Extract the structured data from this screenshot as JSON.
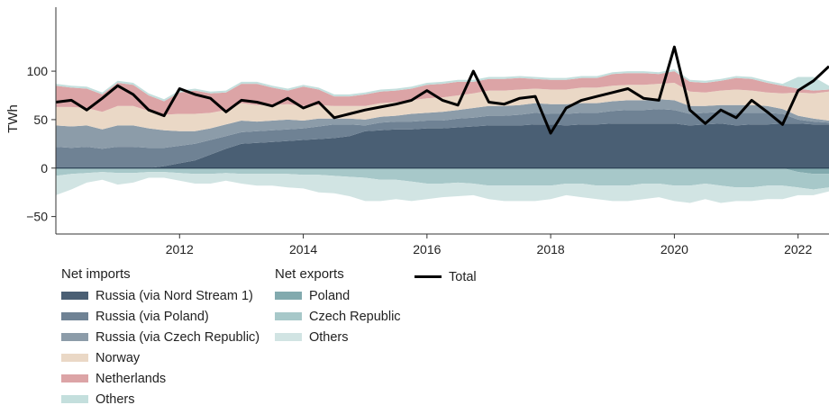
{
  "chart_data": {
    "type": "area",
    "ylabel": "TWh",
    "xlim": [
      2010.0,
      2022.5
    ],
    "ylim": [
      -68,
      166
    ],
    "x_ticks": [
      "2012",
      "2014",
      "2016",
      "2018",
      "2020",
      "2022"
    ],
    "y_ticks": [
      "100",
      "50",
      "0",
      "−50"
    ],
    "x": [
      2010.0,
      2010.25,
      2010.5,
      2010.75,
      2011.0,
      2011.25,
      2011.5,
      2011.75,
      2012.0,
      2012.25,
      2012.5,
      2012.75,
      2013.0,
      2013.25,
      2013.5,
      2013.75,
      2014.0,
      2014.25,
      2014.5,
      2014.75,
      2015.0,
      2015.25,
      2015.5,
      2015.75,
      2016.0,
      2016.25,
      2016.5,
      2016.75,
      2017.0,
      2017.25,
      2017.5,
      2017.75,
      2018.0,
      2018.25,
      2018.5,
      2018.75,
      2019.0,
      2019.25,
      2019.5,
      2019.75,
      2020.0,
      2020.25,
      2020.5,
      2020.75,
      2021.0,
      2021.25,
      2021.5,
      2021.75,
      2022.0,
      2022.25,
      2022.5
    ],
    "legend": {
      "imports_title": "Net imports",
      "exports_title": "Net exports",
      "total_label": "Total"
    },
    "import_series": [
      {
        "name": "Russia (via Nord Stream 1)",
        "color": "#4a5f74",
        "values": [
          0,
          0,
          0,
          0,
          0,
          0,
          0,
          2,
          5,
          8,
          14,
          20,
          25,
          26,
          27,
          28,
          29,
          30,
          31,
          33,
          38,
          39,
          40,
          40,
          41,
          41,
          42,
          43,
          44,
          44,
          44,
          45,
          45,
          44,
          45,
          45,
          46,
          46,
          46,
          46,
          46,
          44,
          45,
          46,
          44,
          45,
          45,
          46,
          46,
          45,
          45
        ]
      },
      {
        "name": "Russia (via Poland)",
        "color": "#6f8294",
        "values": [
          22,
          21,
          22,
          20,
          22,
          22,
          21,
          19,
          18,
          17,
          15,
          13,
          12,
          12,
          12,
          12,
          12,
          13,
          14,
          12,
          6,
          8,
          8,
          8,
          8,
          8,
          9,
          9,
          10,
          10,
          11,
          12,
          11,
          12,
          12,
          12,
          13,
          14,
          14,
          15,
          14,
          12,
          12,
          12,
          13,
          12,
          12,
          10,
          4,
          3,
          2
        ]
      },
      {
        "name": "Russia (via Czech Republic)",
        "color": "#8c9ca9",
        "values": [
          22,
          22,
          22,
          20,
          22,
          22,
          20,
          18,
          15,
          13,
          12,
          12,
          12,
          10,
          10,
          10,
          8,
          8,
          6,
          6,
          6,
          6,
          6,
          8,
          8,
          9,
          9,
          10,
          10,
          10,
          10,
          10,
          10,
          10,
          10,
          10,
          10,
          10,
          10,
          10,
          10,
          8,
          7,
          7,
          8,
          8,
          7,
          5,
          4,
          3,
          2
        ]
      },
      {
        "name": "Norway",
        "color": "#ead8c6",
        "values": [
          19,
          20,
          18,
          18,
          20,
          20,
          18,
          16,
          18,
          18,
          16,
          15,
          18,
          17,
          16,
          16,
          15,
          14,
          13,
          13,
          14,
          14,
          14,
          14,
          15,
          15,
          15,
          15,
          16,
          16,
          16,
          15,
          15,
          15,
          16,
          16,
          16,
          16,
          16,
          16,
          18,
          15,
          14,
          15,
          16,
          15,
          14,
          16,
          24,
          26,
          30
        ]
      },
      {
        "name": "Netherlands",
        "color": "#dca4a6",
        "values": [
          22,
          20,
          20,
          18,
          24,
          22,
          16,
          14,
          22,
          24,
          20,
          18,
          20,
          22,
          18,
          14,
          20,
          16,
          10,
          10,
          12,
          12,
          12,
          12,
          14,
          14,
          14,
          12,
          12,
          12,
          12,
          10,
          10,
          10,
          10,
          10,
          12,
          12,
          12,
          10,
          12,
          10,
          10,
          10,
          12,
          12,
          10,
          8,
          4,
          3,
          2
        ]
      },
      {
        "name": "Others",
        "color": "#c4dfdd",
        "values": [
          2,
          2,
          2,
          2,
          2,
          2,
          2,
          2,
          2,
          2,
          2,
          2,
          2,
          2,
          2,
          2,
          2,
          2,
          2,
          2,
          2,
          2,
          2,
          2,
          2,
          2,
          2,
          2,
          2,
          2,
          2,
          2,
          2,
          2,
          2,
          2,
          2,
          2,
          2,
          2,
          2,
          2,
          2,
          2,
          2,
          2,
          2,
          2,
          12,
          14,
          4
        ]
      }
    ],
    "export_series": [
      {
        "name": "Poland",
        "color": "#82aaae",
        "values": [
          0,
          0,
          0,
          0,
          0,
          0,
          0,
          0,
          0,
          0,
          0,
          0,
          0,
          0,
          0,
          0,
          0,
          0,
          0,
          0,
          0,
          0,
          0,
          0,
          0,
          0,
          0,
          0,
          0,
          0,
          0,
          0,
          0,
          0,
          0,
          0,
          0,
          0,
          0,
          0,
          0,
          0,
          0,
          0,
          0,
          0,
          0,
          0,
          -4,
          -6,
          -6
        ]
      },
      {
        "name": "Czech Republic",
        "color": "#a7c8c9",
        "values": [
          -8,
          -6,
          -5,
          -4,
          -5,
          -5,
          -4,
          -4,
          -5,
          -6,
          -6,
          -5,
          -6,
          -6,
          -6,
          -6,
          -7,
          -7,
          -8,
          -9,
          -10,
          -12,
          -12,
          -14,
          -16,
          -16,
          -15,
          -16,
          -18,
          -18,
          -18,
          -18,
          -18,
          -16,
          -16,
          -18,
          -18,
          -18,
          -16,
          -16,
          -18,
          -18,
          -16,
          -18,
          -20,
          -20,
          -18,
          -18,
          -16,
          -16,
          -14
        ]
      },
      {
        "name": "Others",
        "color": "#d1e4e3",
        "values": [
          -20,
          -16,
          -10,
          -8,
          -12,
          -10,
          -6,
          -6,
          -8,
          -10,
          -10,
          -8,
          -10,
          -12,
          -12,
          -14,
          -14,
          -18,
          -18,
          -20,
          -24,
          -22,
          -20,
          -20,
          -16,
          -14,
          -14,
          -12,
          -14,
          -16,
          -16,
          -16,
          -14,
          -12,
          -14,
          -14,
          -16,
          -16,
          -16,
          -14,
          -16,
          -18,
          -16,
          -18,
          -14,
          -14,
          -14,
          -14,
          -8,
          -6,
          -4
        ]
      }
    ],
    "total": {
      "name": "Total",
      "color": "#000000",
      "values": [
        68,
        70,
        60,
        72,
        85,
        76,
        60,
        54,
        82,
        76,
        72,
        58,
        70,
        68,
        64,
        72,
        62,
        68,
        52,
        56,
        60,
        63,
        66,
        70,
        80,
        70,
        65,
        100,
        68,
        66,
        72,
        74,
        36,
        62,
        70,
        74,
        78,
        82,
        72,
        70,
        125,
        60,
        46,
        60,
        52,
        70,
        58,
        45,
        80,
        90,
        105
      ]
    }
  }
}
